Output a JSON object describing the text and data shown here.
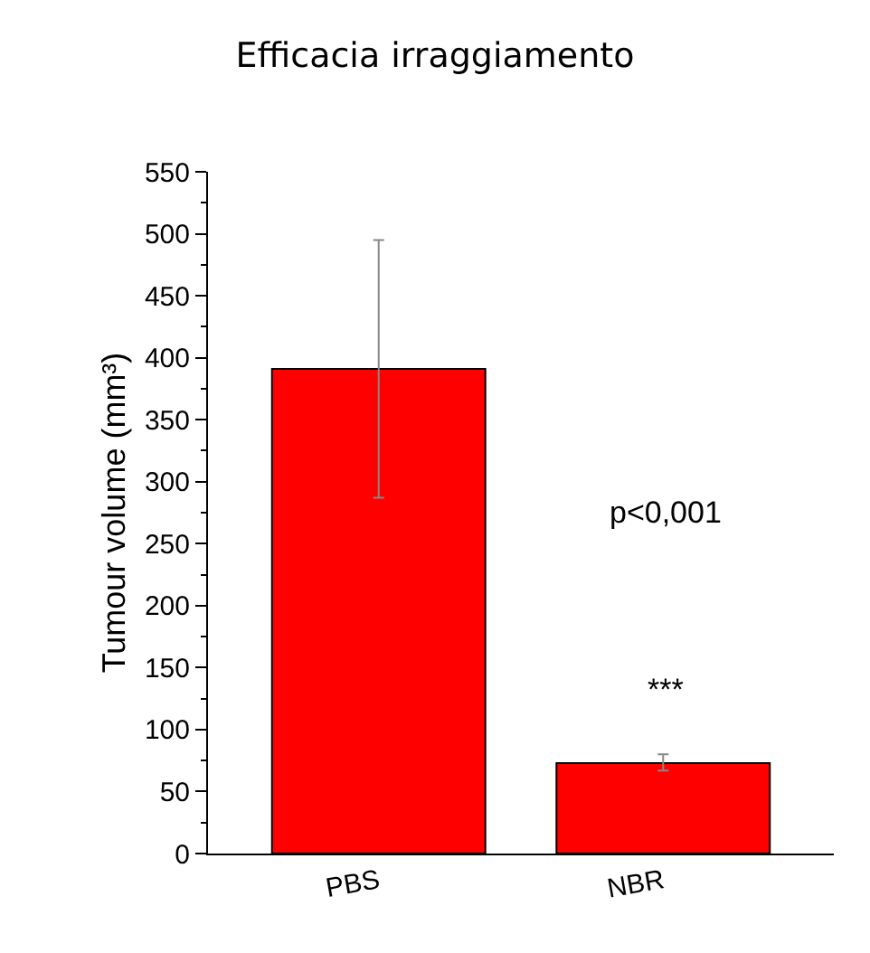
{
  "chart_data": {
    "type": "bar",
    "title": "Efficacia irraggiamento",
    "ylabel": "Tumour volume (mm³)",
    "categories": [
      "PBS",
      "NBR"
    ],
    "values": [
      391,
      73
    ],
    "errors": [
      [
        287,
        495
      ],
      [
        67,
        80
      ]
    ],
    "color": "#ff0000",
    "ylim": [
      0,
      550
    ],
    "yticks": [
      0,
      50,
      100,
      150,
      200,
      250,
      300,
      350,
      400,
      450,
      500,
      550
    ],
    "grid": false,
    "annotations": [
      "p<0,001",
      "***"
    ]
  }
}
